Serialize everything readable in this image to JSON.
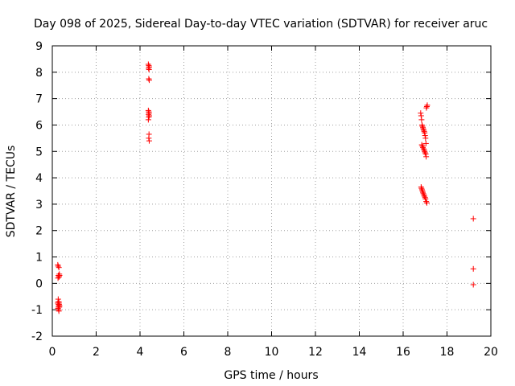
{
  "chart_data": {
    "type": "scatter",
    "title": "Day 098 of 2025, Sidereal Day-to-day VTEC variation (SDTVAR) for receiver aruc",
    "xlabel": "GPS time / hours",
    "ylabel": "SDTVAR / TECUs",
    "xlim": [
      0,
      20
    ],
    "ylim": [
      -2,
      9
    ],
    "xticks": [
      "0",
      "2",
      "4",
      "6",
      "8",
      "10",
      "12",
      "14",
      "16",
      "18",
      "20"
    ],
    "yticks": [
      "-2",
      "-1",
      "0",
      "1",
      "2",
      "3",
      "4",
      "5",
      "6",
      "7",
      "8",
      "9"
    ],
    "grid": true,
    "marker": "+",
    "series": [
      {
        "name": "SDTVAR",
        "color": "#ff0000",
        "x": [
          0.25,
          0.27,
          0.3,
          0.32,
          0.28,
          0.3,
          0.26,
          0.29,
          0.31,
          0.33,
          0.27,
          0.3,
          0.25,
          0.28,
          0.3,
          0.32,
          0.26,
          0.29,
          0.31,
          0.27,
          0.3,
          0.33,
          0.28,
          0.3,
          4.38,
          4.4,
          4.42,
          4.39,
          4.41,
          4.4,
          4.42,
          4.38,
          4.4,
          4.41,
          4.39,
          4.42,
          4.4,
          4.38,
          4.41,
          4.4,
          4.42,
          16.8,
          16.82,
          16.84,
          16.86,
          16.88,
          16.9,
          16.92,
          16.94,
          16.96,
          16.98,
          17.0,
          17.02,
          17.04,
          16.85,
          16.88,
          16.9,
          16.93,
          16.96,
          16.98,
          17.0,
          17.03,
          17.05,
          16.82,
          16.84,
          16.86,
          16.88,
          16.9,
          16.92,
          16.95,
          16.97,
          17.0,
          17.02,
          17.05,
          17.08,
          17.08,
          17.06,
          17.1,
          19.2,
          19.2,
          19.2
        ],
        "y": [
          0.7,
          0.65,
          0.6,
          0.35,
          0.3,
          0.25,
          0.2,
          0.3,
          0.25,
          0.3,
          -0.6,
          -0.7,
          -0.75,
          -0.8,
          -0.85,
          -0.9,
          -0.95,
          -1.0,
          -0.8,
          -0.7,
          -0.75,
          -0.85,
          -0.9,
          -1.05,
          8.3,
          8.25,
          8.2,
          8.15,
          8.1,
          7.75,
          7.7,
          6.55,
          6.5,
          6.45,
          6.4,
          6.35,
          6.3,
          6.2,
          5.65,
          5.5,
          5.4,
          6.45,
          6.35,
          6.2,
          6.0,
          5.95,
          5.9,
          5.85,
          5.8,
          5.75,
          5.7,
          5.6,
          5.5,
          5.3,
          5.25,
          5.2,
          5.15,
          5.1,
          5.05,
          5.0,
          4.95,
          4.9,
          4.8,
          3.65,
          3.6,
          3.55,
          3.5,
          3.45,
          3.4,
          3.35,
          3.3,
          3.25,
          3.2,
          3.1,
          3.05,
          6.7,
          6.65,
          6.75,
          2.45,
          0.55,
          -0.05
        ]
      }
    ]
  }
}
